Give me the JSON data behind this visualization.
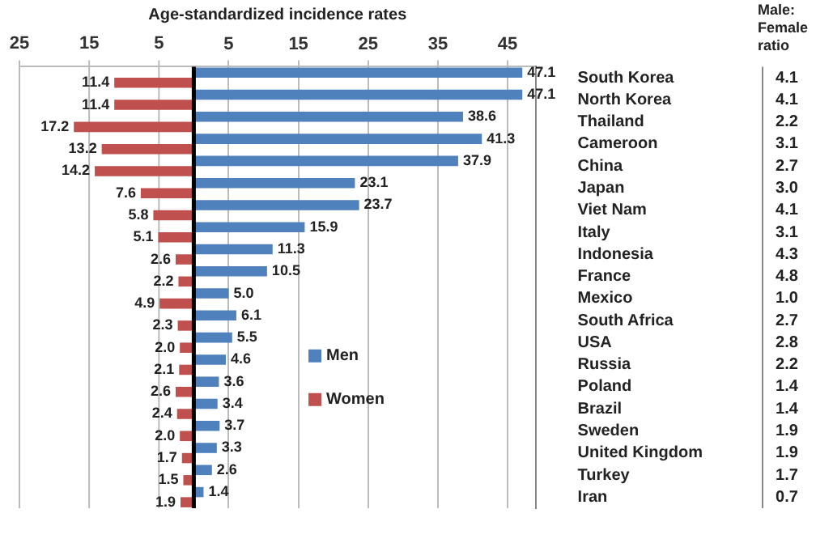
{
  "chart_data": {
    "type": "bar",
    "orientation": "horizontal",
    "title": "Age-standardized incidence rates",
    "y2label": "Male: Female ratio",
    "categories": [
      "South Korea",
      "North Korea",
      "Thailand",
      "Cameroon",
      "China",
      "Japan",
      "Viet Nam",
      "Italy",
      "Indonesia",
      "France",
      "Mexico",
      "South Africa",
      "USA",
      "Russia",
      "Poland",
      "Brazil",
      "Sweden",
      "United Kingdom",
      "Turkey",
      "Iran"
    ],
    "y2_categories": [
      "4.1",
      "4.1",
      "2.2",
      "3.1",
      "2.7",
      "3.0",
      "4.1",
      "3.1",
      "4.3",
      "4.8",
      "1.0",
      "2.7",
      "2.8",
      "2.2",
      "1.4",
      "1.4",
      "1.9",
      "1.9",
      "1.7",
      "0.7"
    ],
    "series": [
      {
        "name": "Men",
        "color": "#4f81bd",
        "values": [
          47.1,
          47.1,
          38.6,
          41.3,
          37.9,
          23.1,
          23.7,
          15.9,
          11.3,
          10.5,
          5.0,
          6.1,
          5.5,
          4.6,
          3.6,
          3.4,
          3.7,
          3.3,
          2.6,
          1.4
        ],
        "value_labels": [
          "47.1",
          "47.1",
          "38.6",
          "41.3",
          "37.9",
          "23.1",
          "23.7",
          "15.9",
          "11.3",
          "10.5",
          "5.0",
          "6.1",
          "5.5",
          "4.6",
          "3.6",
          "3.4",
          "3.7",
          "3.3",
          "2.6",
          "1.4"
        ]
      },
      {
        "name": "Women",
        "color": "#c0504d",
        "axis": "x2",
        "values": [
          11.4,
          11.4,
          17.2,
          13.2,
          14.2,
          7.6,
          5.8,
          5.1,
          2.6,
          2.2,
          4.9,
          2.3,
          2.0,
          2.1,
          2.6,
          2.4,
          2.0,
          1.7,
          1.5,
          1.9
        ],
        "value_labels": [
          "11.4",
          "11.4",
          "17.2",
          "13.2",
          "14.2",
          "7.6",
          "5.8",
          "5.1",
          "2.6",
          "2.2",
          "4.9",
          "2.3",
          "2.0",
          "2.1",
          "2.6",
          "2.4",
          "2.0",
          "1.7",
          "1.5",
          "1.9"
        ]
      }
    ],
    "xlim": [
      -25,
      49
    ],
    "xticks": [
      5,
      15,
      25,
      35,
      45
    ],
    "x2lim": [
      25,
      -49
    ],
    "x2ticks": [
      25,
      15,
      5
    ],
    "ref_lines": [
      {
        "axis": "x",
        "value": 0,
        "color": "#000000"
      }
    ],
    "grid": "x",
    "legend": "right"
  }
}
